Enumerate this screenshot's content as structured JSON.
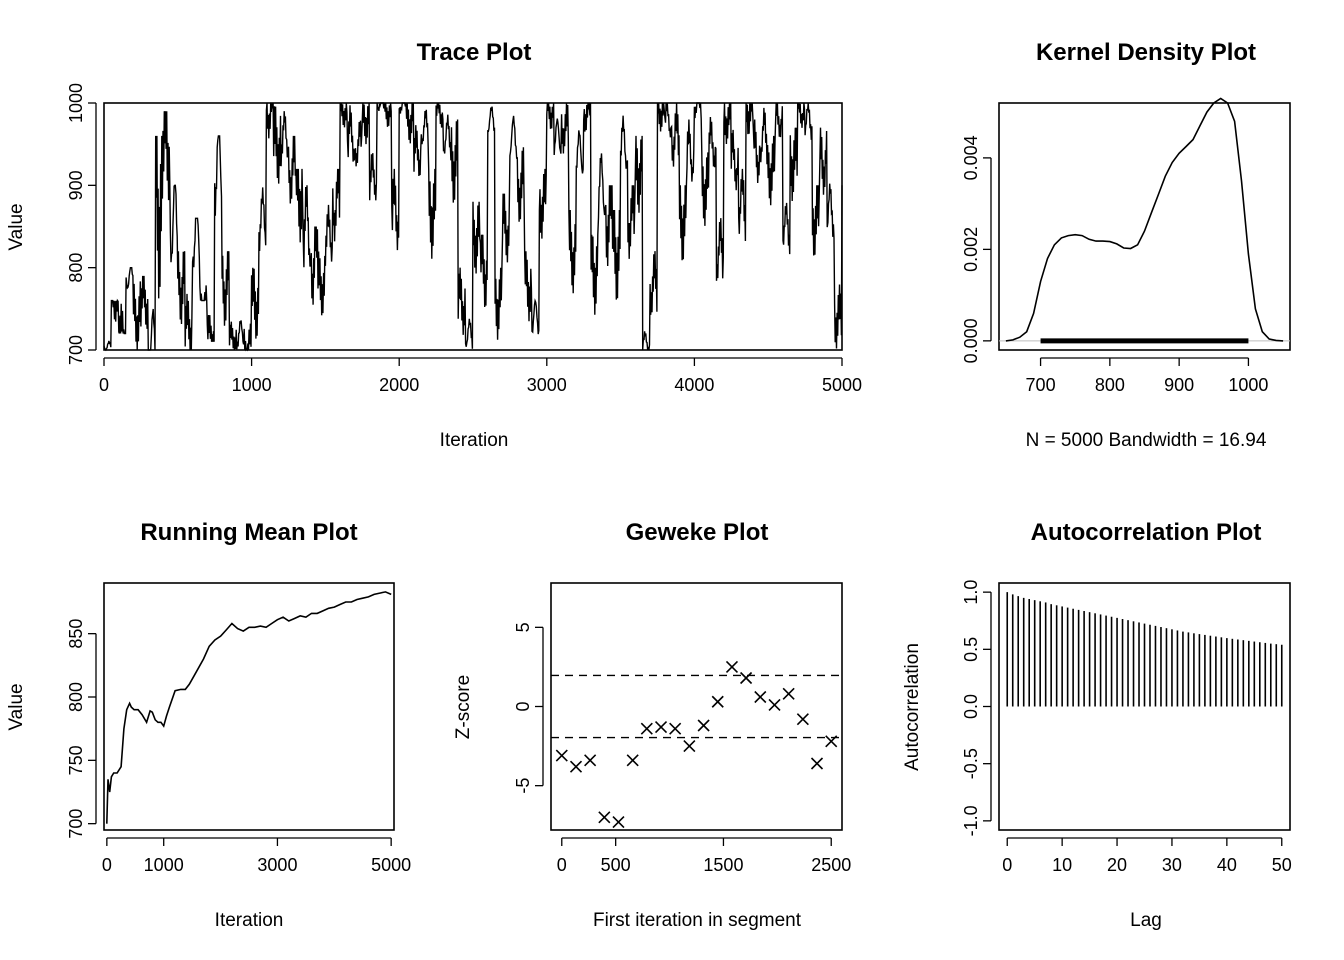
{
  "chart_data": [
    {
      "id": "trace",
      "type": "line",
      "title": "Trace Plot",
      "xlabel": "Iteration",
      "ylabel": "Value",
      "xlim": [
        0,
        5000
      ],
      "ylim": [
        700,
        1000
      ],
      "xticks": [
        0,
        1000,
        2000,
        3000,
        4000,
        5000
      ],
      "yticks": [
        700,
        800,
        900,
        1000
      ],
      "x": [
        0,
        50,
        100,
        150,
        200,
        250,
        300,
        350,
        400,
        450,
        500,
        550,
        600,
        650,
        700,
        750,
        800,
        850,
        900,
        950,
        1000,
        1050,
        1100,
        1150,
        1200,
        1250,
        1300,
        1350,
        1400,
        1450,
        1500,
        1550,
        1600,
        1650,
        1700,
        1750,
        1800,
        1850,
        1900,
        1950,
        2000,
        2050,
        2100,
        2150,
        2200,
        2250,
        2300,
        2350,
        2400,
        2450,
        2500,
        2550,
        2600,
        2650,
        2700,
        2750,
        2800,
        2850,
        2900,
        2950,
        3000,
        3050,
        3100,
        3150,
        3200,
        3250,
        3300,
        3350,
        3400,
        3450,
        3500,
        3550,
        3600,
        3650,
        3700,
        3750,
        3800,
        3850,
        3900,
        3950,
        4000,
        4050,
        4100,
        4150,
        4200,
        4250,
        4300,
        4350,
        4400,
        4450,
        4500,
        4550,
        4600,
        4650,
        4700,
        4750,
        4800,
        4850,
        4900,
        4950,
        5000
      ],
      "y": [
        705,
        760,
        720,
        790,
        740,
        760,
        715,
        880,
        950,
        860,
        780,
        730,
        840,
        760,
        720,
        930,
        780,
        715,
        720,
        705,
        760,
        860,
        990,
        950,
        960,
        920,
        890,
        850,
        810,
        780,
        840,
        880,
        990,
        960,
        950,
        980,
        910,
        1000,
        990,
        870,
        1000,
        980,
        940,
        970,
        870,
        990,
        960,
        930,
        760,
        720,
        840,
        800,
        980,
        760,
        850,
        960,
        900,
        780,
        740,
        880,
        990,
        960,
        970,
        820,
        940,
        990,
        800,
        900,
        860,
        820,
        950,
        860,
        920,
        710,
        780,
        990,
        980,
        960,
        860,
        940,
        1000,
        900,
        950,
        820,
        980,
        930,
        880,
        990,
        940,
        960,
        920,
        980,
        850,
        930,
        990,
        980,
        860,
        930,
        870,
        740,
        870
      ],
      "raw_low": [
        700,
        705,
        720,
        740,
        700,
        710,
        700,
        700,
        840,
        700,
        710,
        700,
        720,
        760,
        710,
        750,
        700,
        700,
        700,
        700,
        700,
        780,
        920,
        900,
        890,
        850,
        800,
        740,
        700,
        740,
        780,
        790,
        960,
        900,
        910,
        940,
        880,
        970,
        960,
        790,
        960,
        940,
        900,
        930,
        800,
        950,
        920,
        870,
        700,
        700,
        780,
        720,
        940,
        700,
        790,
        900,
        850,
        720,
        700,
        820,
        950,
        920,
        930,
        760,
        880,
        940,
        720,
        800,
        760,
        740,
        880,
        780,
        850,
        700,
        720,
        950,
        930,
        900,
        790,
        870,
        950,
        840,
        900,
        760,
        940,
        870,
        800,
        940,
        880,
        900,
        870,
        940,
        800,
        870,
        950,
        930,
        800,
        870,
        800,
        700,
        800
      ],
      "raw_high": [
        720,
        760,
        800,
        800,
        790,
        790,
        830,
        960,
        990,
        900,
        820,
        780,
        860,
        800,
        760,
        960,
        820,
        740,
        760,
        760,
        800,
        900,
        1000,
        1000,
        990,
        960,
        920,
        900,
        850,
        820,
        880,
        920,
        1000,
        1000,
        990,
        1000,
        960,
        1000,
        1000,
        920,
        1000,
        1000,
        980,
        1000,
        920,
        1000,
        1000,
        980,
        800,
        760,
        880,
        840,
        1000,
        800,
        890,
        990,
        950,
        820,
        780,
        920,
        1000,
        1000,
        1000,
        870,
        980,
        1000,
        840,
        940,
        900,
        870,
        990,
        900,
        960,
        740,
        820,
        1000,
        1000,
        1000,
        900,
        980,
        1000,
        940,
        990,
        870,
        1000,
        970,
        920,
        1000,
        980,
        1000,
        960,
        1000,
        890,
        970,
        1000,
        1000,
        900,
        970,
        910,
        780,
        900
      ]
    },
    {
      "id": "density",
      "type": "area",
      "title": "Kernel Density Plot",
      "xlabel": "N = 5000   Bandwidth = 16.94",
      "xlim": [
        640,
        1060
      ],
      "ylim": [
        -0.0002,
        0.0052
      ],
      "xticks": [
        700,
        800,
        900,
        1000
      ],
      "yticks": [
        "0.000",
        "0.002",
        "0.004"
      ],
      "ytick_values": [
        0,
        0.002,
        0.004
      ],
      "x": [
        650,
        660,
        670,
        680,
        690,
        700,
        710,
        720,
        730,
        740,
        750,
        760,
        770,
        780,
        790,
        800,
        810,
        820,
        830,
        840,
        850,
        860,
        870,
        880,
        890,
        900,
        910,
        920,
        930,
        940,
        950,
        960,
        970,
        980,
        990,
        1000,
        1010,
        1020,
        1030,
        1040,
        1050
      ],
      "y": [
        0.0,
        2e-05,
        8e-05,
        0.0002,
        0.0006,
        0.0013,
        0.0018,
        0.0021,
        0.00225,
        0.0023,
        0.00232,
        0.0023,
        0.00222,
        0.00218,
        0.00218,
        0.00217,
        0.00212,
        0.00203,
        0.00202,
        0.0021,
        0.0024,
        0.0028,
        0.0032,
        0.0036,
        0.0039,
        0.0041,
        0.00425,
        0.0044,
        0.0047,
        0.005,
        0.0052,
        0.0053,
        0.0052,
        0.0048,
        0.0035,
        0.0019,
        0.0007,
        0.0002,
        4e-05,
        1e-05,
        0.0
      ],
      "rug": [
        700,
        1000
      ]
    },
    {
      "id": "running-mean",
      "type": "line",
      "title": "Running Mean Plot",
      "xlabel": "Iteration",
      "ylabel": "Value",
      "xlim": [
        -50,
        5050
      ],
      "ylim": [
        695,
        890
      ],
      "xticks": [
        0,
        1000,
        3000,
        5000
      ],
      "yticks": [
        700,
        750,
        800,
        850
      ],
      "x": [
        0,
        20,
        50,
        80,
        120,
        180,
        250,
        300,
        350,
        400,
        430,
        480,
        550,
        620,
        700,
        760,
        800,
        850,
        900,
        950,
        1000,
        1050,
        1100,
        1200,
        1300,
        1380,
        1450,
        1550,
        1700,
        1800,
        1900,
        2000,
        2100,
        2200,
        2300,
        2400,
        2500,
        2600,
        2700,
        2800,
        2900,
        3000,
        3100,
        3200,
        3300,
        3400,
        3500,
        3600,
        3700,
        3800,
        3900,
        4000,
        4100,
        4200,
        4300,
        4400,
        4500,
        4600,
        4700,
        4800,
        4900,
        5000
      ],
      "y": [
        700,
        735,
        725,
        737,
        740,
        740,
        745,
        775,
        790,
        795,
        792,
        790,
        790,
        786,
        780,
        789,
        788,
        782,
        780,
        780,
        777,
        785,
        792,
        805,
        806,
        806,
        810,
        818,
        830,
        840,
        845,
        848,
        853,
        858,
        854,
        852,
        855,
        855,
        856,
        855,
        858,
        861,
        863,
        860,
        862,
        864,
        863,
        866,
        866,
        868,
        870,
        871,
        873,
        875,
        875,
        877,
        878,
        879,
        881,
        882,
        883,
        881
      ]
    },
    {
      "id": "geweke",
      "type": "scatter",
      "title": "Geweke Plot",
      "xlabel": "First iteration in segment",
      "ylabel": "Z-score",
      "xlim": [
        -100,
        2600
      ],
      "ylim": [
        -7.8,
        7.8
      ],
      "xticks": [
        0,
        500,
        1500,
        2500
      ],
      "yticks": [
        -5,
        0,
        5
      ],
      "ref_lines": [
        1.96,
        -1.96
      ],
      "x": [
        0,
        132,
        263,
        395,
        526,
        658,
        789,
        921,
        1052,
        1184,
        1316,
        1447,
        1579,
        1710,
        1842,
        1974,
        2105,
        2237,
        2368,
        2500
      ],
      "y": [
        -3.1,
        -3.8,
        -3.4,
        -7.0,
        -7.3,
        -3.4,
        -1.4,
        -1.3,
        -1.4,
        -2.5,
        -1.2,
        0.3,
        2.5,
        1.8,
        0.6,
        0.1,
        0.8,
        -0.8,
        -3.6,
        -2.2
      ]
    },
    {
      "id": "acf",
      "type": "bar",
      "title": "Autocorrelation Plot",
      "xlabel": "Lag",
      "ylabel": "Autocorrelation",
      "xlim": [
        -1.5,
        51.5
      ],
      "ylim": [
        -1.08,
        1.08
      ],
      "xticks": [
        0,
        10,
        20,
        30,
        40,
        50
      ],
      "yticks": [
        "-1.0",
        "-0.5",
        "0.0",
        "0.5",
        "1.0"
      ],
      "ytick_values": [
        -1,
        -0.5,
        0,
        0.5,
        1
      ],
      "lags": [
        0,
        1,
        2,
        3,
        4,
        5,
        6,
        7,
        8,
        9,
        10,
        11,
        12,
        13,
        14,
        15,
        16,
        17,
        18,
        19,
        20,
        21,
        22,
        23,
        24,
        25,
        26,
        27,
        28,
        29,
        30,
        31,
        32,
        33,
        34,
        35,
        36,
        37,
        38,
        39,
        40,
        41,
        42,
        43,
        44,
        45,
        46,
        47,
        48,
        49,
        50
      ],
      "values": [
        1.0,
        0.98,
        0.965,
        0.95,
        0.94,
        0.93,
        0.92,
        0.91,
        0.895,
        0.885,
        0.875,
        0.865,
        0.855,
        0.845,
        0.835,
        0.825,
        0.815,
        0.805,
        0.795,
        0.785,
        0.775,
        0.765,
        0.755,
        0.745,
        0.735,
        0.725,
        0.715,
        0.705,
        0.695,
        0.685,
        0.675,
        0.665,
        0.655,
        0.648,
        0.64,
        0.633,
        0.626,
        0.619,
        0.612,
        0.605,
        0.598,
        0.592,
        0.586,
        0.58,
        0.574,
        0.568,
        0.562,
        0.556,
        0.55,
        0.545,
        0.54
      ]
    }
  ]
}
